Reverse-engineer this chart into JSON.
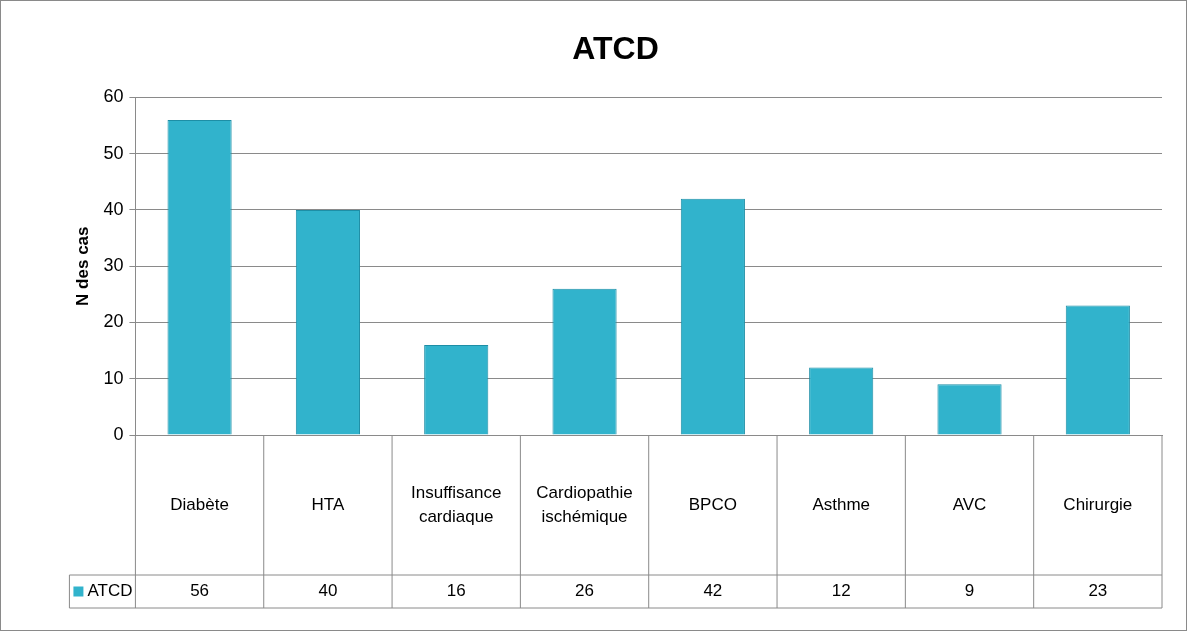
{
  "chart_data": {
    "type": "bar",
    "title": "ATCD",
    "ylabel": "N des cas",
    "categories": [
      "Diabète",
      "HTA",
      "Insuffisance cardiaque",
      "Cardiopathie ischémique",
      "BPCO",
      "Asthme",
      "AVC",
      "Chirurgie"
    ],
    "series": [
      {
        "name": "ATCD",
        "color": "#31b3cc",
        "values": [
          56,
          40,
          16,
          26,
          42,
          12,
          9,
          23
        ]
      }
    ],
    "ylim": [
      0,
      60
    ],
    "yticks": [
      0,
      10,
      20,
      30,
      40,
      50,
      60
    ],
    "grid": "y",
    "data_labels": true,
    "legend": "bottom left"
  }
}
